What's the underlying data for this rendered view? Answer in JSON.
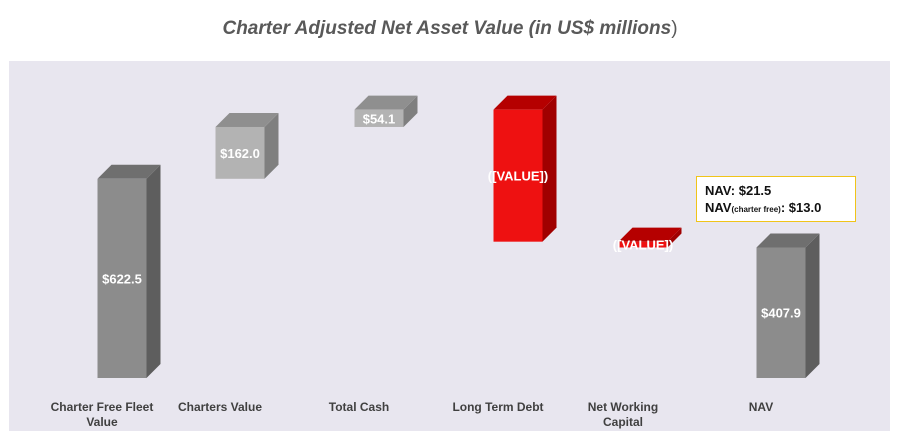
{
  "title": {
    "text": "Charter Adjusted Net Asset Value (in US$ millions",
    "close": ")"
  },
  "annotation": {
    "nav_label": "NAV:",
    "nav_value": "$21.5",
    "nav_charter_free_prefix": "NAV",
    "nav_charter_free_sub": "(charter free)",
    "nav_charter_free_value": ": $13.0"
  },
  "colors": {
    "plot_background": "#e8e6ef",
    "total_bar": "#8c8c8c",
    "increase_bar": "#b3b3b3",
    "decrease_bar": "#ee1111",
    "annotation_border": "#f0c419"
  },
  "chart_data": {
    "type": "bar",
    "subtype": "waterfall",
    "style": "3d",
    "title": "Charter Adjusted Net Asset Value (in US$ millions)",
    "categories": [
      "Charter Free Fleet Value",
      "Charters Value",
      "Total Cash",
      "Long Term Debt",
      "Net Working Capital",
      "NAV"
    ],
    "category_lines": [
      [
        "Charter Free Fleet",
        "Value"
      ],
      [
        "Charters Value"
      ],
      [
        "Total Cash"
      ],
      [
        "Long Term Debt"
      ],
      [
        "Net Working",
        "Capital"
      ],
      [
        "NAV"
      ]
    ],
    "bars": [
      {
        "kind": "total",
        "start": 0,
        "end": 622.5,
        "label": "$622.5"
      },
      {
        "kind": "increase",
        "start": 622.5,
        "end": 784.5,
        "label": "$162.0"
      },
      {
        "kind": "increase",
        "start": 784.5,
        "end": 838.6,
        "label": "$54.1"
      },
      {
        "kind": "decrease",
        "start": 838.6,
        "end": 426.0,
        "label": "([VALUE])"
      },
      {
        "kind": "decrease",
        "start": 426.0,
        "end": 407.9,
        "label": "([VALUE])"
      },
      {
        "kind": "total",
        "start": 0,
        "end": 407.9,
        "label": "$407.9"
      }
    ],
    "ylim": [
      0,
      900
    ],
    "grid": false,
    "legend": "none"
  }
}
